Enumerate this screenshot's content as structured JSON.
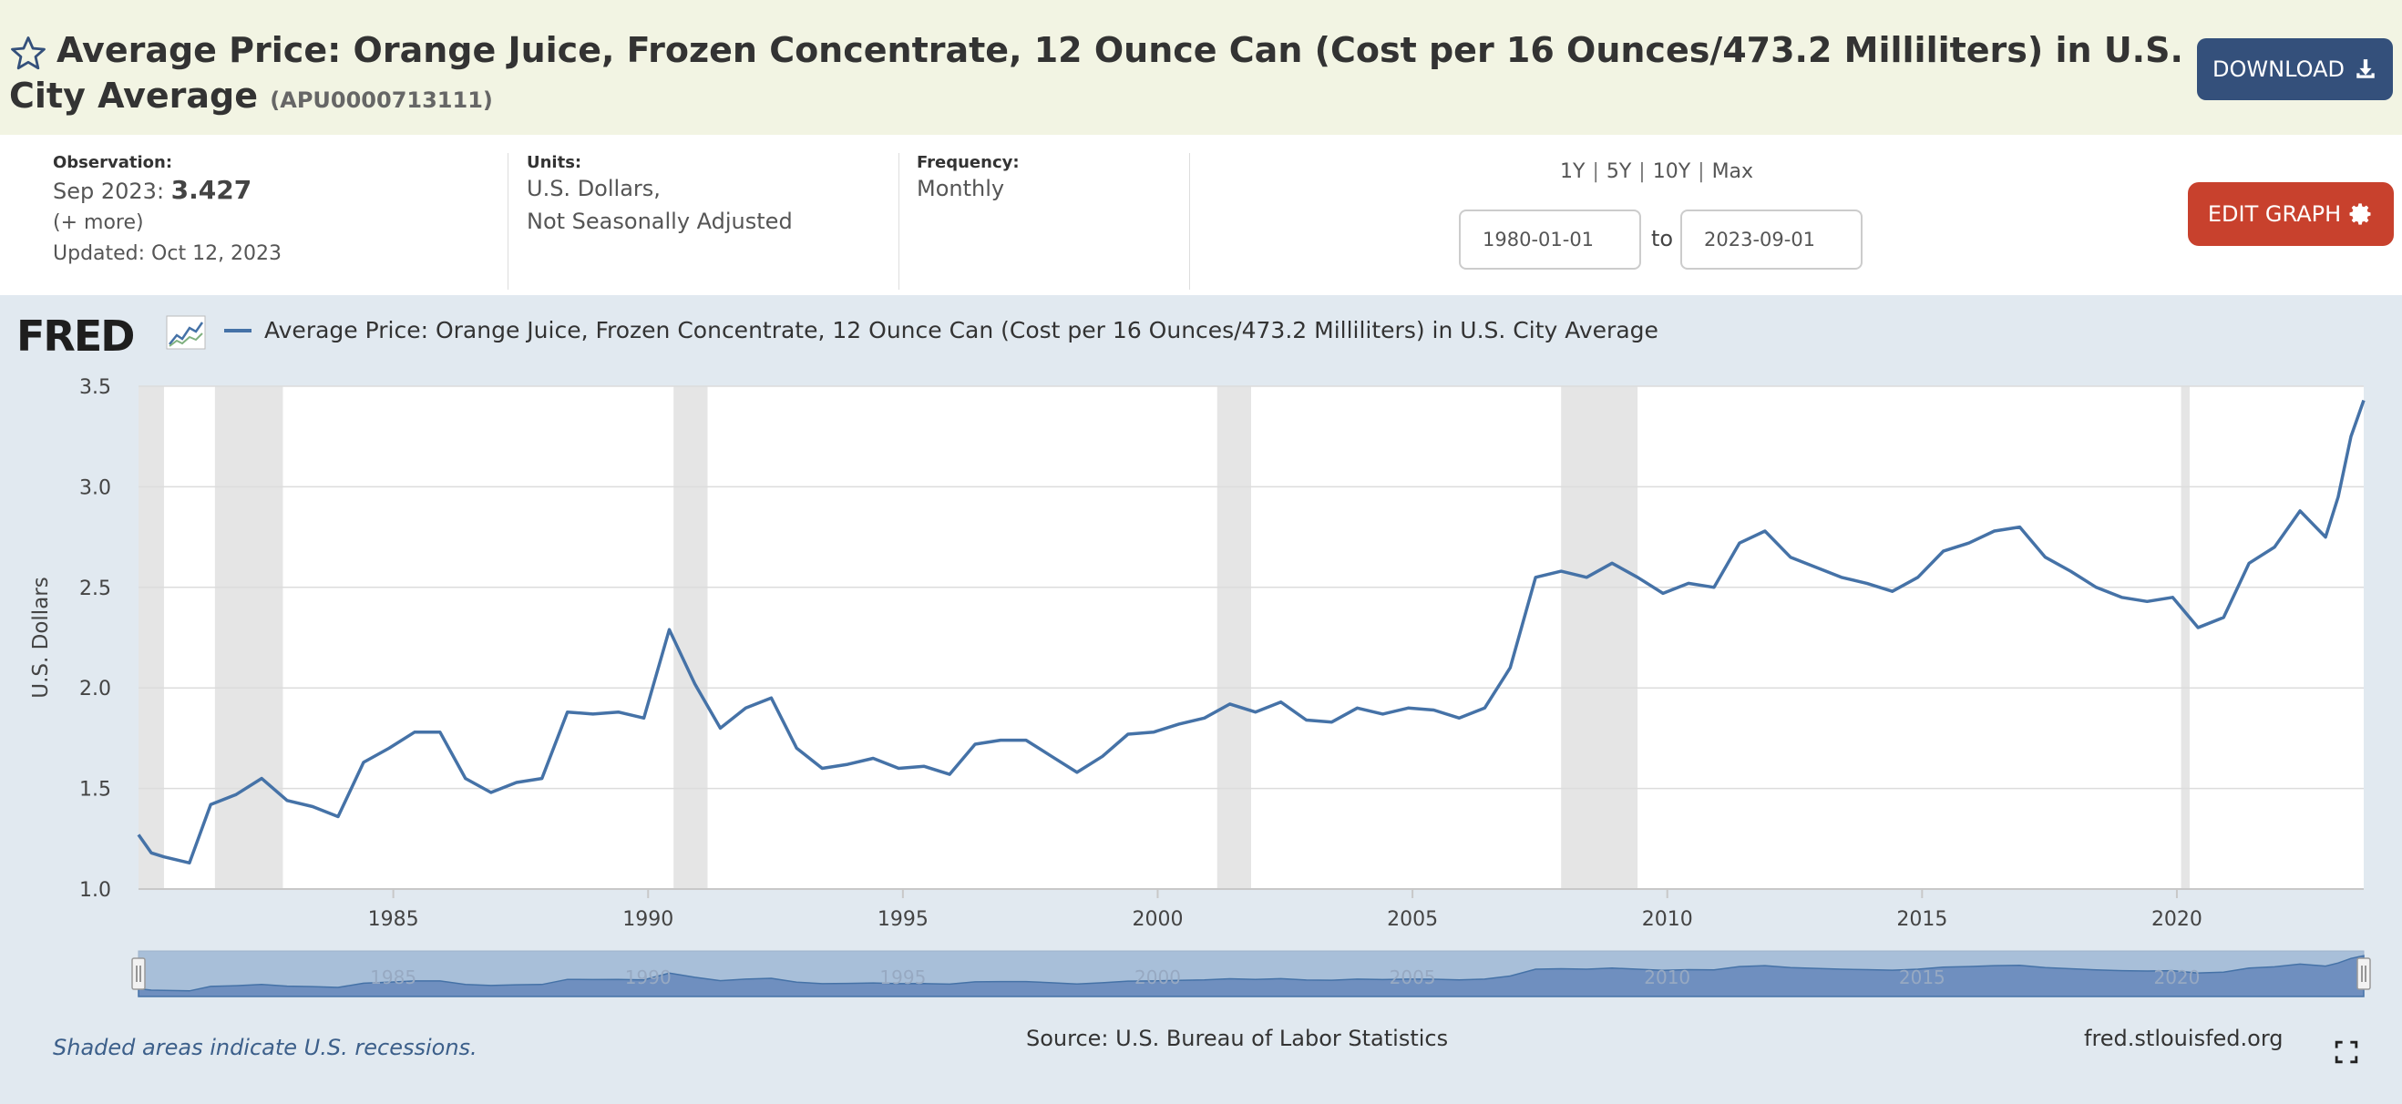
{
  "header": {
    "title": "Average Price: Orange Juice, Frozen Concentrate, 12 Ounce Can (Cost per 16 Ounces/473.2 Milliliters) in U.S. City Average",
    "series_id": "(APU0000713111)",
    "download_label": "DOWNLOAD",
    "icons": {
      "favorite": "star-outline-icon",
      "download": "download-icon"
    }
  },
  "meta": {
    "observation_label": "Observation:",
    "observation_date": "Sep 2023:",
    "observation_value": "3.427",
    "more_label": "(+ more)",
    "updated": "Updated: Oct 12, 2023",
    "units_label": "Units:",
    "units_line1": "U.S. Dollars,",
    "units_line2": "Not Seasonally Adjusted",
    "frequency_label": "Frequency:",
    "frequency_value": "Monthly",
    "ranges": [
      "1Y",
      "5Y",
      "10Y",
      "Max"
    ],
    "range_separator": "|",
    "start_date": "1980-01-01",
    "to_label": "to",
    "end_date": "2023-09-01",
    "edit_label": "EDIT GRAPH",
    "icons": {
      "edit": "gear-icon"
    }
  },
  "graph": {
    "logo": "FRED",
    "legend": "Average Price: Orange Juice, Frozen Concentrate, 12 Ounce Can (Cost per 16 Ounces/473.2 Milliliters) in U.S. City Average",
    "recession_note": "Shaded areas indicate U.S. recessions.",
    "source": "Source: U.S. Bureau of Labor Statistics",
    "url": "fred.stlouisfed.org",
    "icons": {
      "expand": "expand-icon",
      "logo_graph": "line-graph-icon"
    }
  },
  "chart_data": {
    "type": "line",
    "title": "",
    "xlabel": "",
    "ylabel": "U.S. Dollars",
    "xlim": [
      "1980-01-01",
      "2023-09-01"
    ],
    "ylim": [
      1.0,
      3.5
    ],
    "yticks": [
      1.0,
      1.5,
      2.0,
      2.5,
      3.0,
      3.5
    ],
    "ytick_labels": [
      "1.0",
      "1.5",
      "2.0",
      "2.5",
      "3.0",
      "3.5"
    ],
    "xticks": [
      1985,
      1990,
      1995,
      2000,
      2005,
      2010,
      2015,
      2020
    ],
    "grid": true,
    "line_color": "#4572a7",
    "recession_color": "#e5e5e5",
    "recessions": [
      [
        "1980-01",
        "1980-07"
      ],
      [
        "1981-07",
        "1982-11"
      ],
      [
        "1990-07",
        "1991-03"
      ],
      [
        "2001-03",
        "2001-11"
      ],
      [
        "2007-12",
        "2009-06"
      ],
      [
        "2020-02",
        "2020-04"
      ]
    ],
    "x": [
      "1980-01",
      "1980-04",
      "1980-07",
      "1981-01",
      "1981-06",
      "1981-12",
      "1982-06",
      "1982-12",
      "1983-06",
      "1983-12",
      "1984-06",
      "1984-12",
      "1985-06",
      "1985-12",
      "1986-06",
      "1986-12",
      "1987-06",
      "1987-12",
      "1988-06",
      "1988-12",
      "1989-06",
      "1989-12",
      "1990-06",
      "1990-12",
      "1991-06",
      "1991-12",
      "1992-06",
      "1992-12",
      "1993-06",
      "1993-12",
      "1994-06",
      "1994-12",
      "1995-06",
      "1995-12",
      "1996-06",
      "1996-12",
      "1997-06",
      "1997-12",
      "1998-06",
      "1998-12",
      "1999-06",
      "1999-12",
      "2000-06",
      "2000-12",
      "2001-06",
      "2001-12",
      "2002-06",
      "2002-12",
      "2003-06",
      "2003-12",
      "2004-06",
      "2004-12",
      "2005-06",
      "2005-12",
      "2006-06",
      "2006-12",
      "2007-06",
      "2007-12",
      "2008-06",
      "2008-12",
      "2009-06",
      "2009-12",
      "2010-06",
      "2010-12",
      "2011-06",
      "2011-12",
      "2012-06",
      "2012-12",
      "2013-06",
      "2013-12",
      "2014-06",
      "2014-12",
      "2015-06",
      "2015-12",
      "2016-06",
      "2016-12",
      "2017-06",
      "2017-12",
      "2018-06",
      "2018-12",
      "2019-06",
      "2019-12",
      "2020-06",
      "2020-12",
      "2021-06",
      "2021-12",
      "2022-06",
      "2022-12",
      "2023-03",
      "2023-06",
      "2023-09"
    ],
    "values": [
      1.27,
      1.18,
      1.16,
      1.13,
      1.42,
      1.47,
      1.55,
      1.44,
      1.41,
      1.36,
      1.63,
      1.7,
      1.78,
      1.78,
      1.55,
      1.48,
      1.53,
      1.55,
      1.88,
      1.87,
      1.88,
      1.85,
      2.29,
      2.02,
      1.8,
      1.9,
      1.95,
      1.7,
      1.6,
      1.62,
      1.65,
      1.6,
      1.61,
      1.57,
      1.72,
      1.74,
      1.74,
      1.66,
      1.58,
      1.66,
      1.77,
      1.78,
      1.82,
      1.85,
      1.92,
      1.88,
      1.93,
      1.84,
      1.83,
      1.9,
      1.87,
      1.9,
      1.89,
      1.85,
      1.9,
      2.1,
      2.55,
      2.58,
      2.55,
      2.62,
      2.55,
      2.47,
      2.52,
      2.5,
      2.72,
      2.78,
      2.65,
      2.6,
      2.55,
      2.52,
      2.48,
      2.55,
      2.68,
      2.72,
      2.78,
      2.8,
      2.65,
      2.58,
      2.5,
      2.45,
      2.43,
      2.45,
      2.3,
      2.35,
      2.62,
      2.7,
      2.88,
      2.75,
      2.95,
      3.25,
      3.43
    ]
  }
}
